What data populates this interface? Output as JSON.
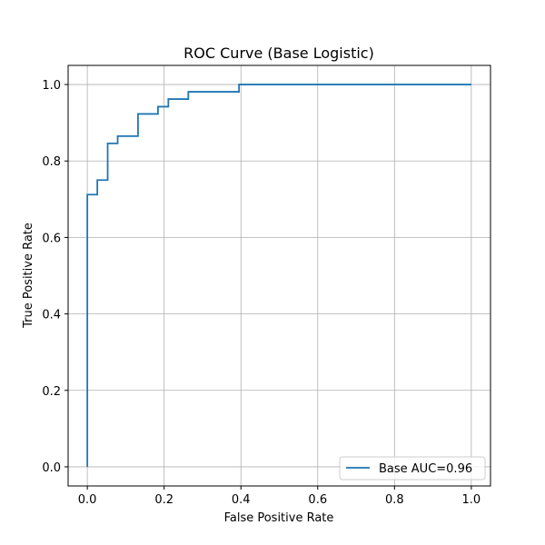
{
  "chart_data": {
    "type": "line",
    "title": "ROC Curve (Base Logistic)",
    "xlabel": "False Positive Rate",
    "ylabel": "True Positive Rate",
    "xlim": [
      -0.05,
      1.05
    ],
    "ylim": [
      -0.05,
      1.05
    ],
    "xticks": [
      0.0,
      0.2,
      0.4,
      0.6,
      0.8,
      1.0
    ],
    "yticks": [
      0.0,
      0.2,
      0.4,
      0.6,
      0.8,
      1.0
    ],
    "xtick_labels": [
      "0.0",
      "0.2",
      "0.4",
      "0.6",
      "0.8",
      "1.0"
    ],
    "ytick_labels": [
      "0.0",
      "0.2",
      "0.4",
      "0.6",
      "0.8",
      "1.0"
    ],
    "grid": true,
    "legend_position": "lower-right",
    "series": [
      {
        "name": "Base AUC=0.96",
        "color": "#1f77b4",
        "x": [
          0.0,
          0.0,
          0.026,
          0.026,
          0.053,
          0.053,
          0.079,
          0.079,
          0.132,
          0.132,
          0.184,
          0.184,
          0.211,
          0.211,
          0.263,
          0.263,
          0.395,
          0.395,
          1.0
        ],
        "y": [
          0.0,
          0.712,
          0.712,
          0.75,
          0.75,
          0.846,
          0.846,
          0.865,
          0.865,
          0.923,
          0.923,
          0.942,
          0.942,
          0.962,
          0.962,
          0.981,
          0.981,
          1.0,
          1.0
        ]
      }
    ]
  }
}
